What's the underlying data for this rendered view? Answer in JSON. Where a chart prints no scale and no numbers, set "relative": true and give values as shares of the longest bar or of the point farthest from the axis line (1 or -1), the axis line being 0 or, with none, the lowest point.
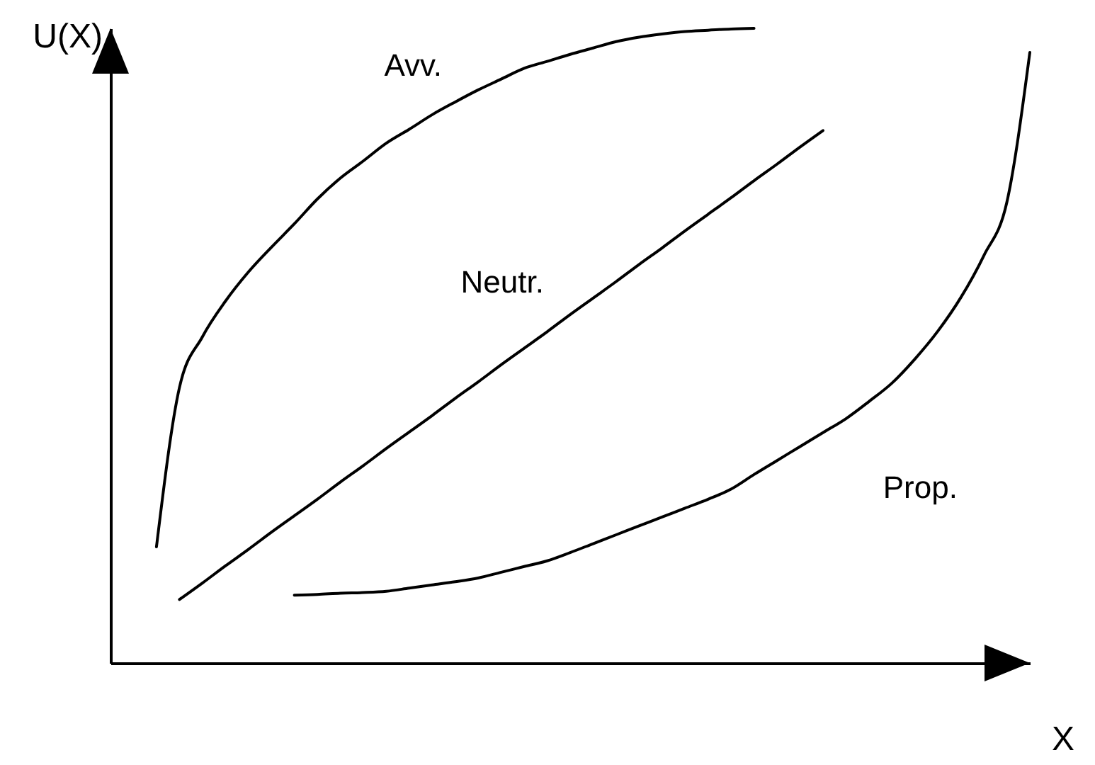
{
  "chart_data": {
    "type": "line",
    "xlabel": "X",
    "ylabel": "U(X)",
    "relative": true,
    "categories": [
      null,
      null,
      null,
      null,
      null,
      null,
      null,
      null,
      null,
      null,
      null,
      null,
      null,
      null,
      null,
      null,
      null,
      null,
      null,
      null,
      null,
      null,
      null,
      null,
      null,
      null,
      null,
      null,
      null,
      null,
      null,
      null,
      null,
      null,
      null,
      null,
      null,
      null,
      null,
      null,
      null
    ],
    "series": [
      {
        "name": "Avv.",
        "color": "#000000",
        "values": [
          null,
          null,
          0.183,
          0.434,
          0.514,
          0.57,
          0.616,
          0.655,
          0.692,
          0.731,
          0.764,
          0.791,
          0.819,
          0.841,
          0.864,
          0.884,
          0.903,
          0.92,
          0.937,
          0.948,
          0.959,
          0.969,
          0.979,
          0.986,
          0.991,
          0.995,
          0.997,
          0.999,
          1,
          null,
          null,
          null,
          null,
          null,
          null,
          null,
          null,
          null,
          null,
          null,
          null
        ]
      },
      {
        "name": "Neutr.",
        "color": "#000000",
        "values": [
          null,
          null,
          null,
          0.1,
          0.126,
          0.153,
          0.179,
          0.206,
          0.232,
          0.258,
          0.285,
          0.311,
          0.338,
          0.364,
          0.39,
          0.417,
          0.443,
          0.47,
          0.496,
          0.522,
          0.549,
          0.575,
          0.601,
          0.628,
          0.654,
          0.681,
          0.707,
          0.733,
          0.76,
          0.786,
          0.813,
          0.839,
          null,
          null,
          null,
          null,
          null,
          null,
          null,
          null,
          null
        ]
      },
      {
        "name": "Prop.",
        "color": "#000000",
        "values": [
          null,
          null,
          null,
          null,
          null,
          null,
          null,
          null,
          0.107,
          0.108,
          0.11,
          0.111,
          0.113,
          0.118,
          0.123,
          0.128,
          0.134,
          0.143,
          0.152,
          0.161,
          0.174,
          0.188,
          0.202,
          0.216,
          0.23,
          0.244,
          0.258,
          0.274,
          0.297,
          0.319,
          0.341,
          0.363,
          0.385,
          0.412,
          0.441,
          0.479,
          0.523,
          0.576,
          0.642,
          0.726,
          0.962
        ]
      }
    ]
  }
}
